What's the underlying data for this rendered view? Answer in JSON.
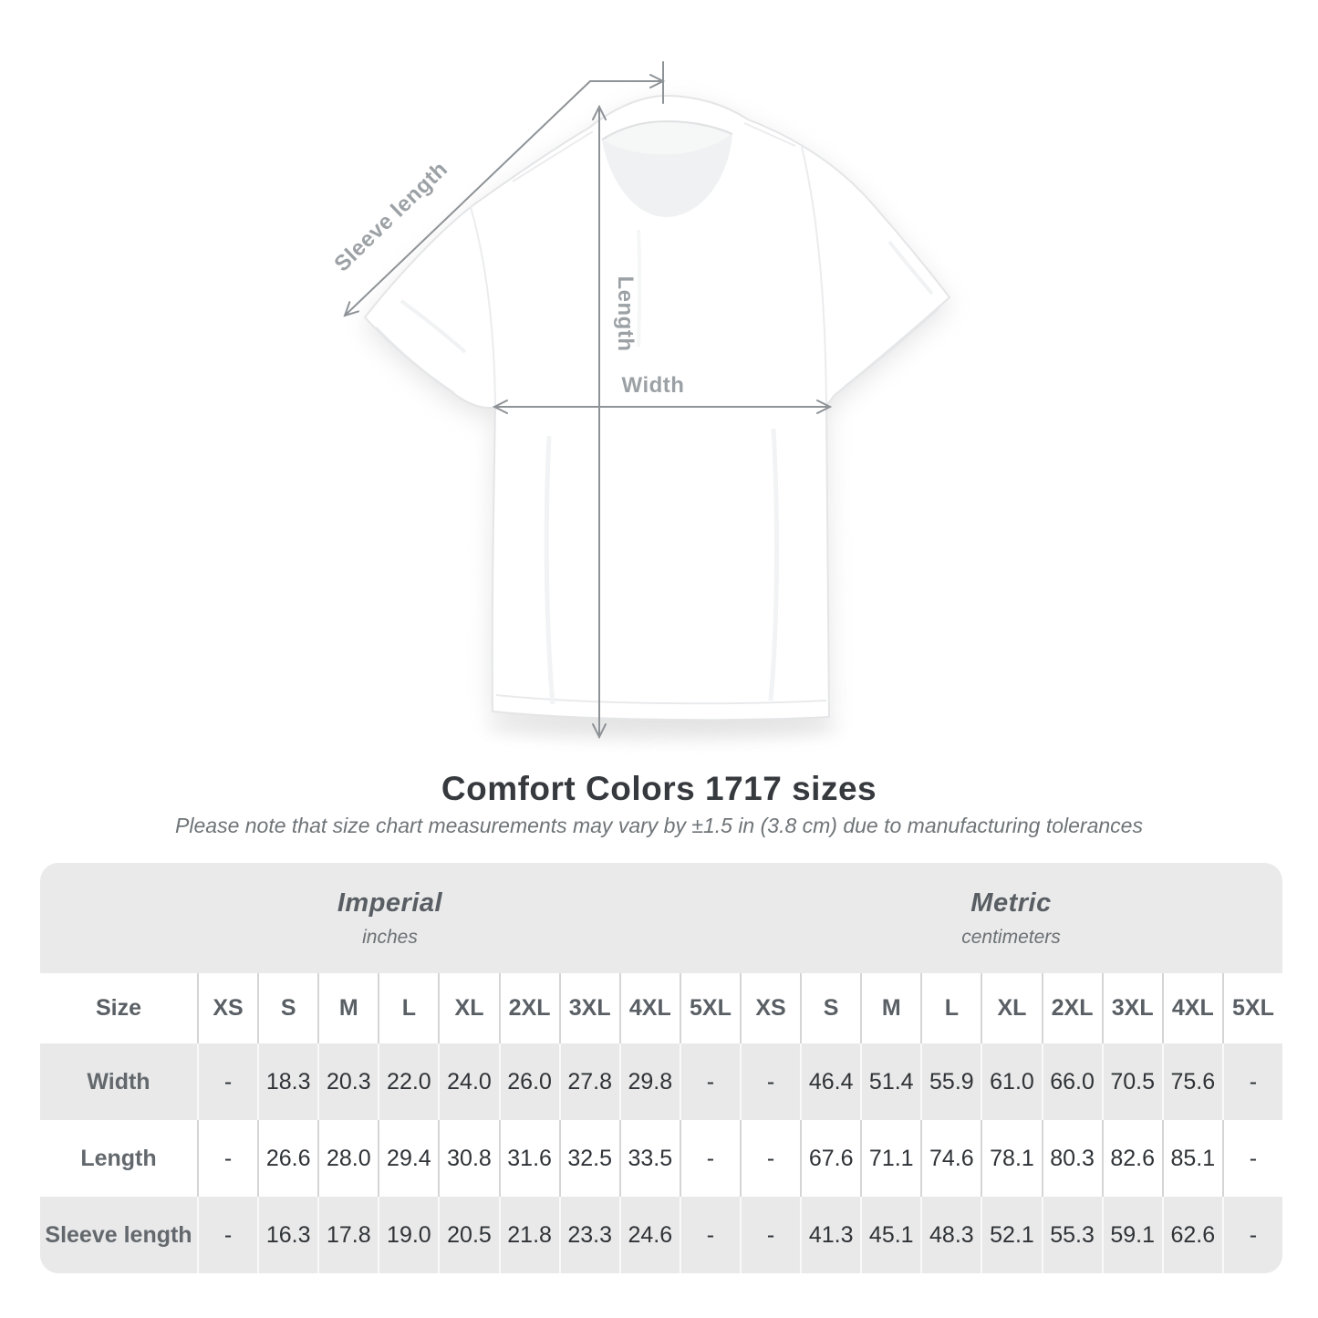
{
  "page": {
    "title": "Comfort Colors 1717 sizes",
    "subtitle": "Please note that size chart measurements may vary by ±1.5 in (3.8 cm) due to manufacturing tolerances"
  },
  "diagram": {
    "sleeve_label": "Sleeve length",
    "length_label": "Length",
    "width_label": "Width"
  },
  "size_chart": {
    "unit_groups": [
      {
        "label": "Imperial",
        "unit": "inches"
      },
      {
        "label": "Metric",
        "unit": "centimeters"
      }
    ],
    "corner_header": "Size",
    "size_columns": [
      "XS",
      "S",
      "M",
      "L",
      "XL",
      "2XL",
      "3XL",
      "4XL",
      "5XL"
    ],
    "rows": [
      {
        "label": "Width",
        "imperial": [
          "-",
          "18.3",
          "20.3",
          "22.0",
          "24.0",
          "26.0",
          "27.8",
          "29.8",
          "-"
        ],
        "metric": [
          "-",
          "46.4",
          "51.4",
          "55.9",
          "61.0",
          "66.0",
          "70.5",
          "75.6",
          "-"
        ]
      },
      {
        "label": "Length",
        "imperial": [
          "-",
          "26.6",
          "28.0",
          "29.4",
          "30.8",
          "31.6",
          "32.5",
          "33.5",
          "-"
        ],
        "metric": [
          "-",
          "67.6",
          "71.1",
          "74.6",
          "78.1",
          "80.3",
          "82.6",
          "85.1",
          "-"
        ]
      },
      {
        "label": "Sleeve length",
        "imperial": [
          "-",
          "16.3",
          "17.8",
          "19.0",
          "20.5",
          "21.8",
          "23.3",
          "24.6",
          "-"
        ],
        "metric": [
          "-",
          "41.3",
          "45.1",
          "48.3",
          "52.1",
          "55.3",
          "59.1",
          "62.6",
          "-"
        ]
      }
    ]
  },
  "colors": {
    "band_gray": "#eaeaea",
    "row_gray": "#e9e9e9",
    "separator": "#d5d5d5",
    "arrow_gray": "#8e9397",
    "measure_label_gray": "#9ca1a5",
    "title_text": "#36393d",
    "value_text": "#2f3337"
  }
}
